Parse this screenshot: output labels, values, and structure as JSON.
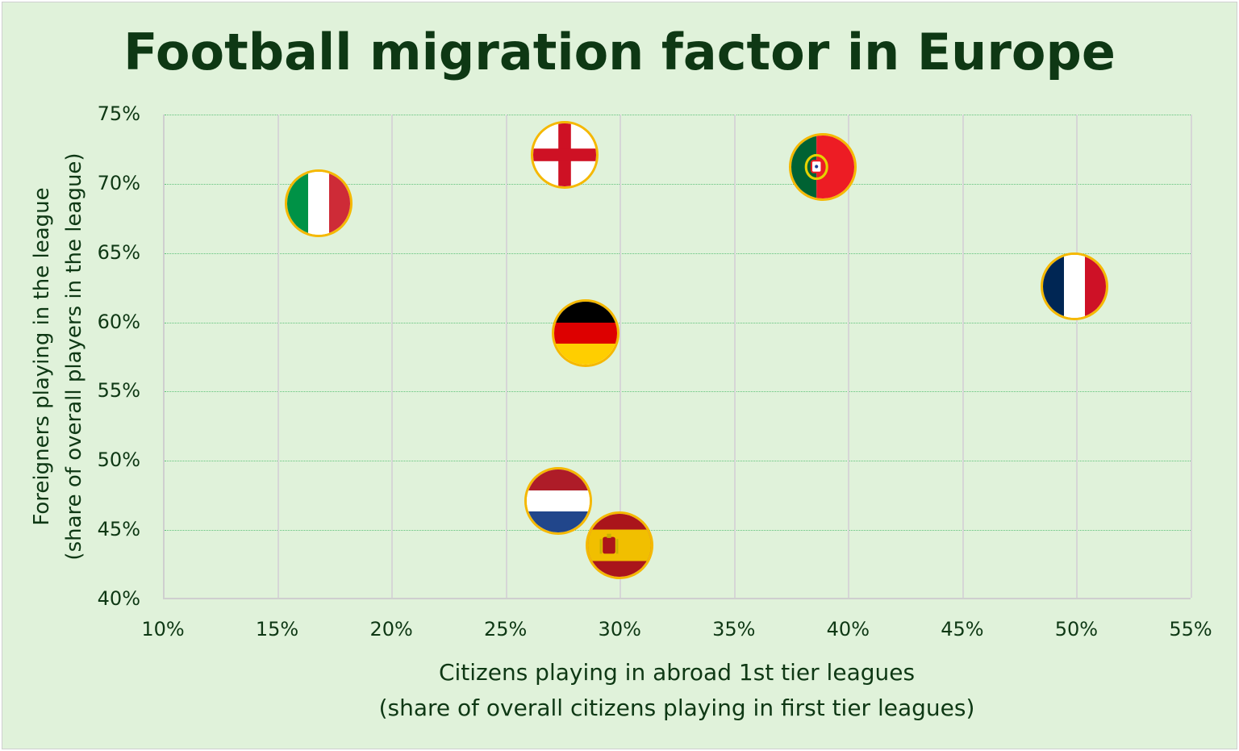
{
  "title": "Football migration factor in Europe",
  "x_axis": {
    "label_line1": "Citizens playing in abroad 1st tier leagues",
    "label_line2": "(share of overall citizens playing in first tier leagues)",
    "ticks": [
      "10%",
      "15%",
      "20%",
      "25%",
      "30%",
      "35%",
      "40%",
      "45%",
      "50%",
      "55%"
    ]
  },
  "y_axis": {
    "label_line1": "Foreigners playing in the league",
    "label_line2": "(share of overall players in the league)",
    "ticks": [
      "75%",
      "70%",
      "65%",
      "60%",
      "55%",
      "50%",
      "45%",
      "40%"
    ]
  },
  "colors": {
    "background": "#e0f2da",
    "text": "#0e3814",
    "grid_h": "#5fc27a",
    "grid_v": "#d6d6d6",
    "marker_border": "#f5b800"
  },
  "chart_data": {
    "type": "scatter",
    "title": "Football migration factor in Europe",
    "xlabel": "Citizens playing in abroad 1st tier leagues (share of overall citizens playing in first tier leagues)",
    "ylabel": "Foreigners playing in the league (share of overall players in the league)",
    "xlim": [
      10,
      55
    ],
    "ylim": [
      40,
      75
    ],
    "x_unit": "%",
    "y_unit": "%",
    "grid": true,
    "legend": "none (flag markers)",
    "points": [
      {
        "country": "Italy",
        "marker": "italy-flag",
        "x": 16.8,
        "y": 68.6
      },
      {
        "country": "England",
        "marker": "england-flag",
        "x": 27.6,
        "y": 72.1
      },
      {
        "country": "Portugal",
        "marker": "portugal-flag",
        "x": 38.9,
        "y": 71.2
      },
      {
        "country": "France",
        "marker": "france-flag",
        "x": 49.9,
        "y": 62.6
      },
      {
        "country": "Germany",
        "marker": "germany-flag",
        "x": 28.5,
        "y": 59.2
      },
      {
        "country": "Netherlands",
        "marker": "netherlands-flag",
        "x": 27.3,
        "y": 47.1
      },
      {
        "country": "Spain",
        "marker": "spain-flag",
        "x": 30.0,
        "y": 43.9
      }
    ]
  }
}
